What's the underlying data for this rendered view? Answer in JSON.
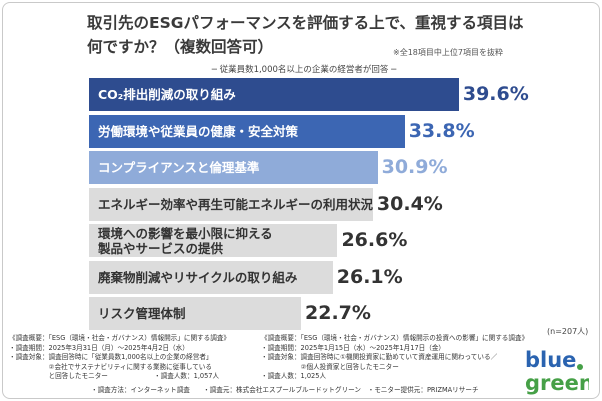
{
  "title_line1": "取引先のESGパフォーマンスを評価する上で、重視する項目は",
  "title_line2": "何ですか？（複数回答可）",
  "note_right": "※全18項目中上位7項目を抜粋",
  "subtitle": "─ 従業員数1,000名以上の企業の経営者が回答 ─",
  "chart_data": {
    "type": "bar",
    "orientation": "horizontal",
    "title": "取引先のESGパフォーマンスを評価する上で、重視する項目は何ですか？（複数回答可）",
    "unit": "%",
    "xlim": [
      0,
      50
    ],
    "categories": [
      "CO₂排出削減の取り組み",
      "労働環境や従業員の健康・安全対策",
      "コンプライアンスと倫理基準",
      "エネルギー効率や再生可能エネルギーの利用状況",
      "環境への影響を最小限に抑える製品やサービスの提供",
      "廃棄物削減やリサイクルの取り組み",
      "リスク管理体制"
    ],
    "category_lines": [
      [
        "CO₂排出削減の取り組み"
      ],
      [
        "労働環境や従業員の健康・安全対策"
      ],
      [
        "コンプライアンスと倫理基準"
      ],
      [
        "エネルギー効率や再生可能エネルギーの利用状況"
      ],
      [
        "環境への影響を最小限に抑える",
        "製品やサービスの提供"
      ],
      [
        "廃棄物削減やリサイクルの取り組み"
      ],
      [
        "リスク管理体制"
      ]
    ],
    "values": [
      39.6,
      33.8,
      30.9,
      30.4,
      26.6,
      26.1,
      22.7
    ],
    "value_labels": [
      "39.6%",
      "33.8%",
      "30.9%",
      "30.4%",
      "26.6%",
      "26.1%",
      "22.7%"
    ],
    "bar_colors": [
      "#2e4c8f",
      "#3c66b3",
      "#8fabd9",
      "#dcdcdc",
      "#dcdcdc",
      "#dcdcdc",
      "#dcdcdc"
    ],
    "label_colors": [
      "#ffffff",
      "#ffffff",
      "#ffffff",
      "#333333",
      "#333333",
      "#333333",
      "#333333"
    ],
    "value_colors": [
      "#2e4c8f",
      "#3c66b3",
      "#8fabd9",
      "#333333",
      "#333333",
      "#333333",
      "#333333"
    ]
  },
  "n_note": "(n=207人)",
  "footer_left": [
    "《調査概要：「ESG（環境・社会・ガバナンス）情報開示」に関する調査》",
    "・調査期間：2025年3月31日（月）〜2025年4月2日（水）",
    "・調査対象：調査回答時に「従業員数1,000名以上の企業の経営者」",
    "　　　　　　②会社でサステナビリティに関する業務に従事している",
    "　　　　　　と回答したモニター　　　　　　　・調査人数：1,057人"
  ],
  "footer_right": [
    "《調査概要：「ESG（環境・社会・ガバナンス）情報開示の投資への影響」に関する調査》",
    "・調査期間：2025年1月15日（水）〜2025年1月17日（金）",
    "・調査対象：調査回答時に①機関投資家に勤めていて資産運用に関わっている／",
    "　　　　　　②個人投資家と回答したモニター",
    "・調査人数：1,025人"
  ],
  "footer_bottom": "・調査方法：インターネット調査　　・調査元：株式会社エスプールブルードットグリーン　・モニター提供元：PRIZMAリサーチ",
  "logo": {
    "line1": "blue",
    "line2": "green",
    "color1": "#2a63b0",
    "color2": "#46a047",
    "dot_color": "#46a047"
  }
}
